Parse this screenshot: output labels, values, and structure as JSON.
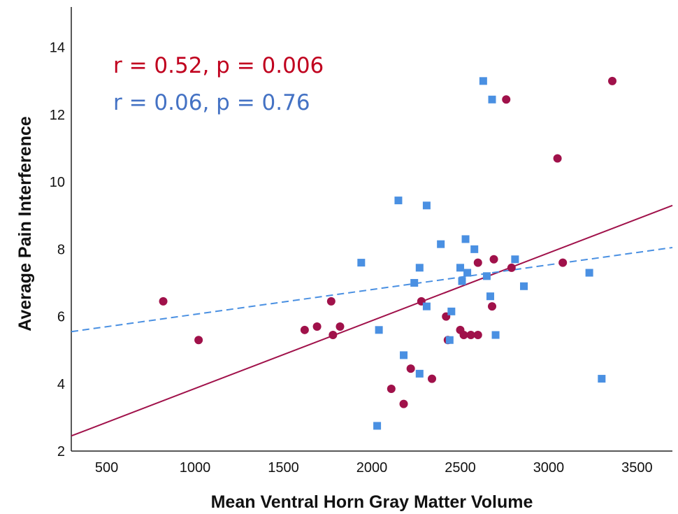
{
  "chart_data": {
    "type": "scatter",
    "xlabel": "Mean Ventral Horn Gray Matter Volume",
    "ylabel": "Average Pain Interference",
    "xlim": [
      300,
      3700
    ],
    "ylim": [
      2,
      15.2
    ],
    "xticks": [
      500,
      1000,
      1500,
      2000,
      2500,
      3000,
      3500
    ],
    "yticks": [
      2,
      4,
      6,
      8,
      10,
      12,
      14
    ],
    "grid": false,
    "annotations": [
      {
        "text": "r = 0.52, p = 0.006",
        "color": "#C0001E"
      },
      {
        "text": "r = 0.06, p = 0.76",
        "color": "#4472C4"
      }
    ],
    "series": [
      {
        "color": "#A0114A",
        "marker": "circle",
        "points": [
          [
            820,
            6.45
          ],
          [
            1020,
            5.3
          ],
          [
            1620,
            5.6
          ],
          [
            1690,
            5.7
          ],
          [
            1770,
            6.45
          ],
          [
            1780,
            5.45
          ],
          [
            1820,
            5.7
          ],
          [
            2110,
            3.85
          ],
          [
            2180,
            3.4
          ],
          [
            2220,
            4.45
          ],
          [
            2280,
            6.45
          ],
          [
            2340,
            4.15
          ],
          [
            2420,
            6.0
          ],
          [
            2430,
            5.3
          ],
          [
            2500,
            5.6
          ],
          [
            2520,
            5.45
          ],
          [
            2560,
            5.45
          ],
          [
            2600,
            7.6
          ],
          [
            2600,
            5.45
          ],
          [
            2680,
            6.3
          ],
          [
            2690,
            7.7
          ],
          [
            2760,
            12.45
          ],
          [
            2790,
            7.45
          ],
          [
            3050,
            10.7
          ],
          [
            3080,
            7.6
          ],
          [
            3360,
            13.0
          ]
        ],
        "trend": {
          "style": "solid",
          "x": [
            300,
            3700
          ],
          "y": [
            2.45,
            9.3
          ]
        }
      },
      {
        "color": "#4A90E2",
        "marker": "square",
        "points": [
          [
            1940,
            7.6
          ],
          [
            2030,
            2.75
          ],
          [
            2040,
            5.6
          ],
          [
            2150,
            9.45
          ],
          [
            2180,
            4.85
          ],
          [
            2240,
            7.0
          ],
          [
            2270,
            4.3
          ],
          [
            2270,
            7.45
          ],
          [
            2310,
            9.3
          ],
          [
            2310,
            6.3
          ],
          [
            2390,
            8.15
          ],
          [
            2440,
            5.3
          ],
          [
            2450,
            6.15
          ],
          [
            2500,
            7.45
          ],
          [
            2510,
            7.05
          ],
          [
            2530,
            8.3
          ],
          [
            2540,
            7.3
          ],
          [
            2580,
            8.0
          ],
          [
            2630,
            13.0
          ],
          [
            2650,
            7.2
          ],
          [
            2670,
            6.6
          ],
          [
            2680,
            12.45
          ],
          [
            2700,
            5.45
          ],
          [
            2810,
            7.7
          ],
          [
            2860,
            6.9
          ],
          [
            3230,
            7.3
          ],
          [
            3300,
            4.15
          ]
        ],
        "trend": {
          "style": "dashed",
          "x": [
            300,
            3700
          ],
          "y": [
            5.55,
            8.05
          ]
        }
      }
    ]
  }
}
